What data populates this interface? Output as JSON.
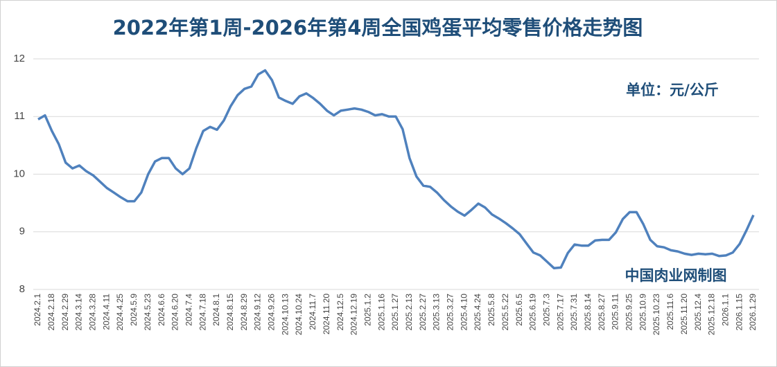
{
  "chart_data": {
    "type": "line",
    "title": "2022年第1周-2026年第4周全国鸡蛋平均零售价格走势图",
    "annotations": [
      "单位：元/公斤",
      "中国肉业网制图"
    ],
    "categories": [
      "2024.2.1",
      null,
      "2024.2.18",
      null,
      "2024.2.29",
      null,
      "2024.3.14",
      null,
      "2024.3.28",
      null,
      "2024.4.11",
      null,
      "2024.4.25",
      null,
      "2024.5.9",
      null,
      "2024.5.23",
      null,
      "2024.6.6",
      null,
      "2024.6.20",
      null,
      "2024.7.4",
      null,
      "2024.7.18",
      null,
      "2024.8.1",
      null,
      "2024.8.15",
      null,
      "2024.8.29",
      null,
      "2024.9.12",
      null,
      "2024.9.26",
      null,
      "2024.10.13",
      null,
      "2024.10.24",
      null,
      "2024.11.7",
      null,
      "2024.11.20",
      null,
      "2024.12.5",
      null,
      "2024.12.19",
      null,
      "2025.1.2",
      null,
      "2025.1.16",
      null,
      "2025.1.27",
      null,
      "2025.2.13",
      null,
      "2025.2.27",
      null,
      "2025.3.13",
      null,
      "2025.3.27",
      null,
      "2025.4.10",
      null,
      "2025.4.24",
      null,
      "2025.5.8",
      null,
      "2025.5.22",
      null,
      "2025.6.5",
      null,
      "2025.6.19",
      null,
      "2025.7.3",
      null,
      "2025.7.17",
      null,
      "2025.7.31",
      null,
      "2025.8.14",
      null,
      "2025.8.27",
      null,
      "2025.9.11",
      null,
      "2025.9.25",
      null,
      "2025.10.9",
      null,
      "2025.10.23",
      null,
      "2025.11.6",
      null,
      "2025.11.20",
      null,
      "2025.12.4",
      null,
      "2025.12.18",
      null,
      "2026.1.1",
      null,
      "2026.1.15",
      null,
      "2026.1.29"
    ],
    "series": [
      {
        "color": "#4f81bd",
        "values": [
          10.95,
          11.02,
          10.75,
          10.52,
          10.2,
          10.1,
          10.15,
          10.05,
          9.98,
          9.87,
          9.76,
          9.68,
          9.6,
          9.53,
          9.53,
          9.68,
          10.0,
          10.22,
          10.28,
          10.28,
          10.1,
          10.0,
          10.1,
          10.45,
          10.75,
          10.82,
          10.77,
          10.93,
          11.18,
          11.37,
          11.48,
          11.52,
          11.73,
          11.8,
          11.63,
          11.33,
          11.27,
          11.22,
          11.35,
          11.4,
          11.32,
          11.22,
          11.1,
          11.02,
          11.1,
          11.12,
          11.14,
          11.12,
          11.08,
          11.02,
          11.04,
          11.0,
          11.0,
          10.78,
          10.28,
          9.96,
          9.8,
          9.78,
          9.68,
          9.55,
          9.44,
          9.35,
          9.28,
          9.38,
          9.49,
          9.42,
          9.3,
          9.23,
          9.15,
          9.06,
          8.96,
          8.8,
          8.64,
          8.59,
          8.48,
          8.37,
          8.38,
          8.63,
          8.78,
          8.76,
          8.76,
          8.85,
          8.86,
          8.86,
          8.99,
          9.22,
          9.34,
          9.34,
          9.13,
          8.86,
          8.75,
          8.73,
          8.68,
          8.66,
          8.62,
          8.6,
          8.62,
          8.61,
          8.62,
          8.58,
          8.59,
          8.64,
          8.79,
          9.03,
          9.29
        ]
      }
    ],
    "ylim": [
      8,
      12
    ],
    "yticks": [
      8,
      9,
      10,
      11,
      12
    ],
    "grid": true
  }
}
